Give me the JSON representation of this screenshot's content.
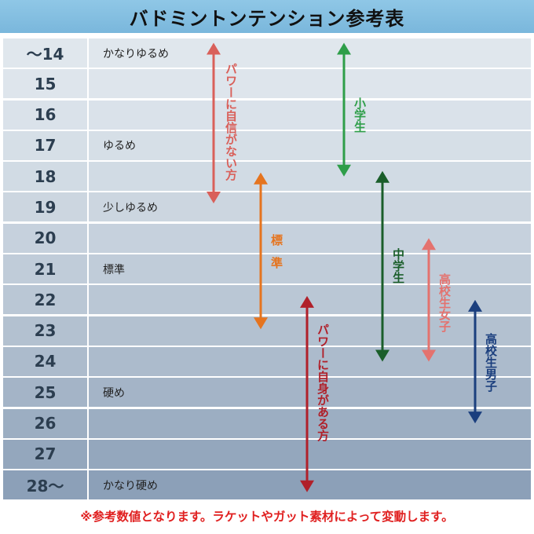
{
  "title": "バドミントンテンション参考表",
  "chart_data": {
    "type": "table",
    "rows": [
      {
        "tension": "～14",
        "description": "かなりゆるめ"
      },
      {
        "tension": "15",
        "description": ""
      },
      {
        "tension": "16",
        "description": ""
      },
      {
        "tension": "17",
        "description": "ゆるめ"
      },
      {
        "tension": "18",
        "description": ""
      },
      {
        "tension": "19",
        "description": "少しゆるめ"
      },
      {
        "tension": "20",
        "description": ""
      },
      {
        "tension": "21",
        "description": "標準"
      },
      {
        "tension": "22",
        "description": ""
      },
      {
        "tension": "23",
        "description": ""
      },
      {
        "tension": "24",
        "description": ""
      },
      {
        "tension": "25",
        "description": "硬め"
      },
      {
        "tension": "26",
        "description": ""
      },
      {
        "tension": "27",
        "description": ""
      },
      {
        "tension": "28～",
        "description": "かなり硬め"
      }
    ],
    "ranges": [
      {
        "label": "パワーに自信がない方",
        "from": 14,
        "to": 19,
        "color": "#d9605a"
      },
      {
        "label": "標準",
        "from": 18,
        "to": 23,
        "color": "#e5741f"
      },
      {
        "label": "パワーに自身がある方",
        "from": 22,
        "to": 28,
        "color": "#b0202a"
      },
      {
        "label": "小学生",
        "from": 14,
        "to": 18,
        "color": "#2e9e49"
      },
      {
        "label": "中学生",
        "from": 18,
        "to": 24,
        "color": "#1a5e2a"
      },
      {
        "label": "高校生女子",
        "from": 20,
        "to": 24,
        "color": "#e4726e"
      },
      {
        "label": "高校生男子",
        "from": 22,
        "to": 26,
        "color": "#1b3f7e"
      }
    ]
  },
  "note": "※参考数値となります。ラケットやガット素材によって変動します。"
}
